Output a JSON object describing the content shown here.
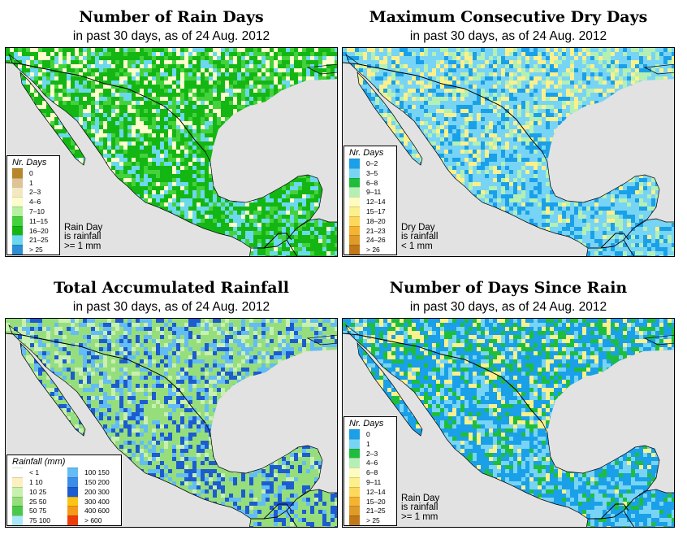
{
  "panels": [
    {
      "id": "rain_days",
      "title": "Number of Rain Days",
      "subtitle": "in past 30 days, as of  24 Aug. 2012",
      "legend_title": "Nr. Days",
      "legend": [
        {
          "label": "0",
          "color": "#b8862a"
        },
        {
          "label": "1",
          "color": "#dfc394"
        },
        {
          "label": "2–3",
          "color": "#f4e8c0"
        },
        {
          "label": "4–6",
          "color": "#fcfccc"
        },
        {
          "label": "7–10",
          "color": "#b6f0a0"
        },
        {
          "label": "11–15",
          "color": "#44d23c"
        },
        {
          "label": "16–20",
          "color": "#14b614"
        },
        {
          "label": "21–25",
          "color": "#6cd8ee"
        },
        {
          "label": "> 25",
          "color": "#2c8ed4"
        }
      ],
      "note": [
        "Rain Day",
        "is rainfall",
        ">= 1 mm"
      ],
      "palette": {
        "land_main": "#14b614",
        "land_dry": "#fcfccc",
        "land_mid": "#44d23c",
        "land_wet": "#6cd8ee",
        "land_very_dry": "#dfc394"
      }
    },
    {
      "id": "max_dry_days",
      "title": "Maximum Consecutive Dry Days",
      "subtitle": "in past 30 days, as of  24 Aug. 2012",
      "legend_title": "Nr. Days",
      "legend": [
        {
          "label": "0–2",
          "color": "#1aa0e8"
        },
        {
          "label": "3–5",
          "color": "#78d4f4"
        },
        {
          "label": "6–8",
          "color": "#1ebe3c"
        },
        {
          "label": "9–11",
          "color": "#b4f0b4"
        },
        {
          "label": "12–14",
          "color": "#fcfcc0"
        },
        {
          "label": "15–17",
          "color": "#fcf08c"
        },
        {
          "label": "18–20",
          "color": "#fcd85c"
        },
        {
          "label": "21–23",
          "color": "#f4b432"
        },
        {
          "label": "24–26",
          "color": "#e09a28"
        },
        {
          "label": "> 26",
          "color": "#c07818"
        }
      ],
      "note": [
        "Dry Day",
        "is rainfall",
        "< 1 mm"
      ],
      "palette": {
        "land_main": "#78d4f4",
        "land_dry": "#fcf08c",
        "land_mid": "#b4f0b4",
        "land_wet": "#1aa0e8",
        "land_very_dry": "#f4b432"
      }
    },
    {
      "id": "total_rainfall",
      "title": "Total Accumulated Rainfall",
      "subtitle": "in past 30 days, as of  24 Aug. 2012",
      "legend_title": "Rainfall (mm)",
      "legend_left": [
        {
          "label": "< 1",
          "color": "#ffffff"
        },
        {
          "label": "1   10",
          "color": "#fcf0c0"
        },
        {
          "label": "10   25",
          "color": "#c8f0b0"
        },
        {
          "label": "25   50",
          "color": "#96de7c"
        },
        {
          "label": "50   75",
          "color": "#4cc848"
        },
        {
          "label": "75  100",
          "color": "#a8e8f8"
        }
      ],
      "legend_right": [
        {
          "label": "100  150",
          "color": "#64bcf4"
        },
        {
          "label": "150  200",
          "color": "#3c8ce8"
        },
        {
          "label": "200  300",
          "color": "#1c5cd0"
        },
        {
          "label": "300  400",
          "color": "#fcc414"
        },
        {
          "label": "400  600",
          "color": "#f49a18"
        },
        {
          "label": "> 600",
          "color": "#ee3c08"
        }
      ],
      "palette": {
        "land_main": "#96de7c",
        "land_dry": "#c8f0b0",
        "land_mid": "#64bcf4",
        "land_wet": "#1c5cd0",
        "land_very_dry": "#f49a18"
      }
    },
    {
      "id": "days_since_rain",
      "title": "Number of Days Since Rain",
      "subtitle": "in past 30 days, as of  24 Aug. 2012",
      "legend_title": "Nr. Days",
      "legend": [
        {
          "label": "0",
          "color": "#1aa0e8"
        },
        {
          "label": "1",
          "color": "#78d4f4"
        },
        {
          "label": "2–3",
          "color": "#1ebe3c"
        },
        {
          "label": "4–6",
          "color": "#b4f0b4"
        },
        {
          "label": "6–8",
          "color": "#fcfcc0"
        },
        {
          "label": "9–11",
          "color": "#fcf08c"
        },
        {
          "label": "12–14",
          "color": "#fcd85c"
        },
        {
          "label": "15–20",
          "color": "#f4b432"
        },
        {
          "label": "21–25",
          "color": "#e09a28"
        },
        {
          "label": "> 25",
          "color": "#c07818"
        }
      ],
      "note": [
        "Rain Day",
        "is rainfall",
        ">= 1 mm"
      ],
      "palette": {
        "land_main": "#1aa0e8",
        "land_dry": "#fcf08c",
        "land_mid": "#1ebe3c",
        "land_wet": "#78d4f4",
        "land_very_dry": "#b4f0b4"
      }
    }
  ]
}
